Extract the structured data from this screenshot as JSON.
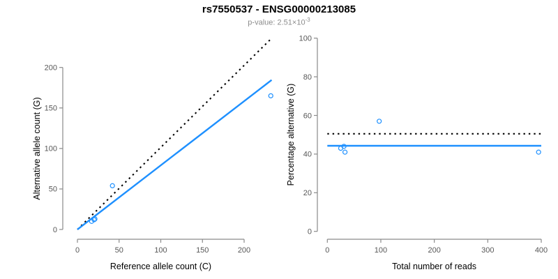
{
  "header": {
    "title": "rs7550537 - ENSG00000213085",
    "subtitle_text": "p-value: 2.51×10",
    "subtitle_exponent": "-3"
  },
  "colors": {
    "accent_blue": "#1E90FF",
    "line_black": "#000000",
    "axis_gray": "#8a8a8a",
    "tick_label_gray": "#575757",
    "subtitle_gray": "#8c8c8c"
  },
  "chart_data": [
    {
      "type": "scatter",
      "panel": "left",
      "xlabel": "Reference allele count (C)",
      "ylabel": "Alternative allele count (G)",
      "xticks": [
        0,
        50,
        100,
        150,
        200
      ],
      "yticks": [
        0,
        50,
        100,
        150,
        200
      ],
      "xlim": [
        0,
        233
      ],
      "ylim": [
        0,
        236
      ],
      "grid": false,
      "legend": "none",
      "points": [
        [
          17,
          10
        ],
        [
          20,
          12
        ],
        [
          21,
          13
        ],
        [
          42,
          54
        ],
        [
          232,
          165
        ]
      ],
      "lines": [
        {
          "name": "expected-identity-line",
          "style": "dotted",
          "color": "#000000",
          "x": [
            0,
            233
          ],
          "y": [
            0,
            236
          ]
        },
        {
          "name": "fitted-allele-line",
          "style": "solid",
          "color": "#1E90FF",
          "x": [
            0,
            233
          ],
          "y": [
            0,
            184.5
          ]
        }
      ]
    },
    {
      "type": "scatter",
      "panel": "right",
      "xlabel": "Total number of reads",
      "ylabel": "Percentage alternative (G)",
      "xticks": [
        0,
        100,
        200,
        300,
        400
      ],
      "yticks": [
        0,
        20,
        40,
        60,
        80,
        100
      ],
      "xlim": [
        0,
        400
      ],
      "ylim": [
        0,
        100
      ],
      "grid": false,
      "legend": "none",
      "points": [
        [
          25,
          43
        ],
        [
          31,
          44
        ],
        [
          33,
          41
        ],
        [
          97,
          57
        ],
        [
          395,
          41
        ]
      ],
      "lines": [
        {
          "name": "expected-percentage-line",
          "style": "dotted",
          "color": "#000000",
          "x": [
            0,
            400
          ],
          "y": [
            50.5,
            50.5
          ]
        },
        {
          "name": "observed-percentage-line",
          "style": "solid",
          "color": "#1E90FF",
          "x": [
            0,
            400
          ],
          "y": [
            44.3,
            44.3
          ]
        }
      ]
    }
  ]
}
